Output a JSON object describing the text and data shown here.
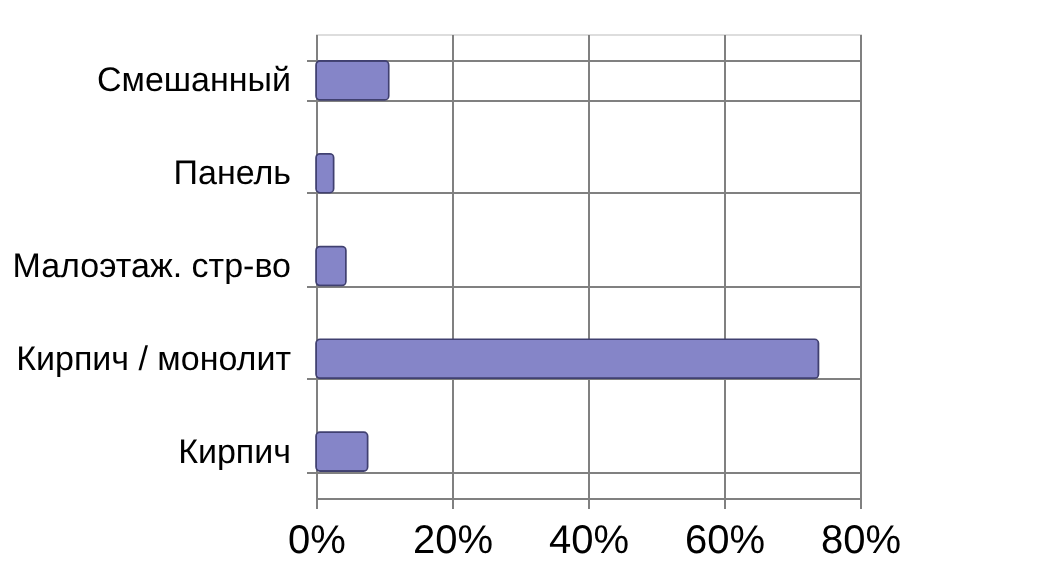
{
  "chart_data": {
    "type": "bar",
    "orientation": "horizontal",
    "categories": [
      "Смешанный",
      "Панель",
      "Малоэтаж. стр-во",
      "Кирпич / монолит",
      "Кирпич"
    ],
    "values": [
      10.7,
      2.6,
      4.4,
      73.9,
      7.6
    ],
    "color": "#8585c8",
    "xlim": [
      0,
      80
    ],
    "xticks": [
      {
        "value": 0,
        "label": "0%"
      },
      {
        "value": 20,
        "label": "20%"
      },
      {
        "value": 40,
        "label": "40%"
      },
      {
        "value": 60,
        "label": "60%"
      },
      {
        "value": 80,
        "label": "80%"
      }
    ],
    "grid": true
  }
}
